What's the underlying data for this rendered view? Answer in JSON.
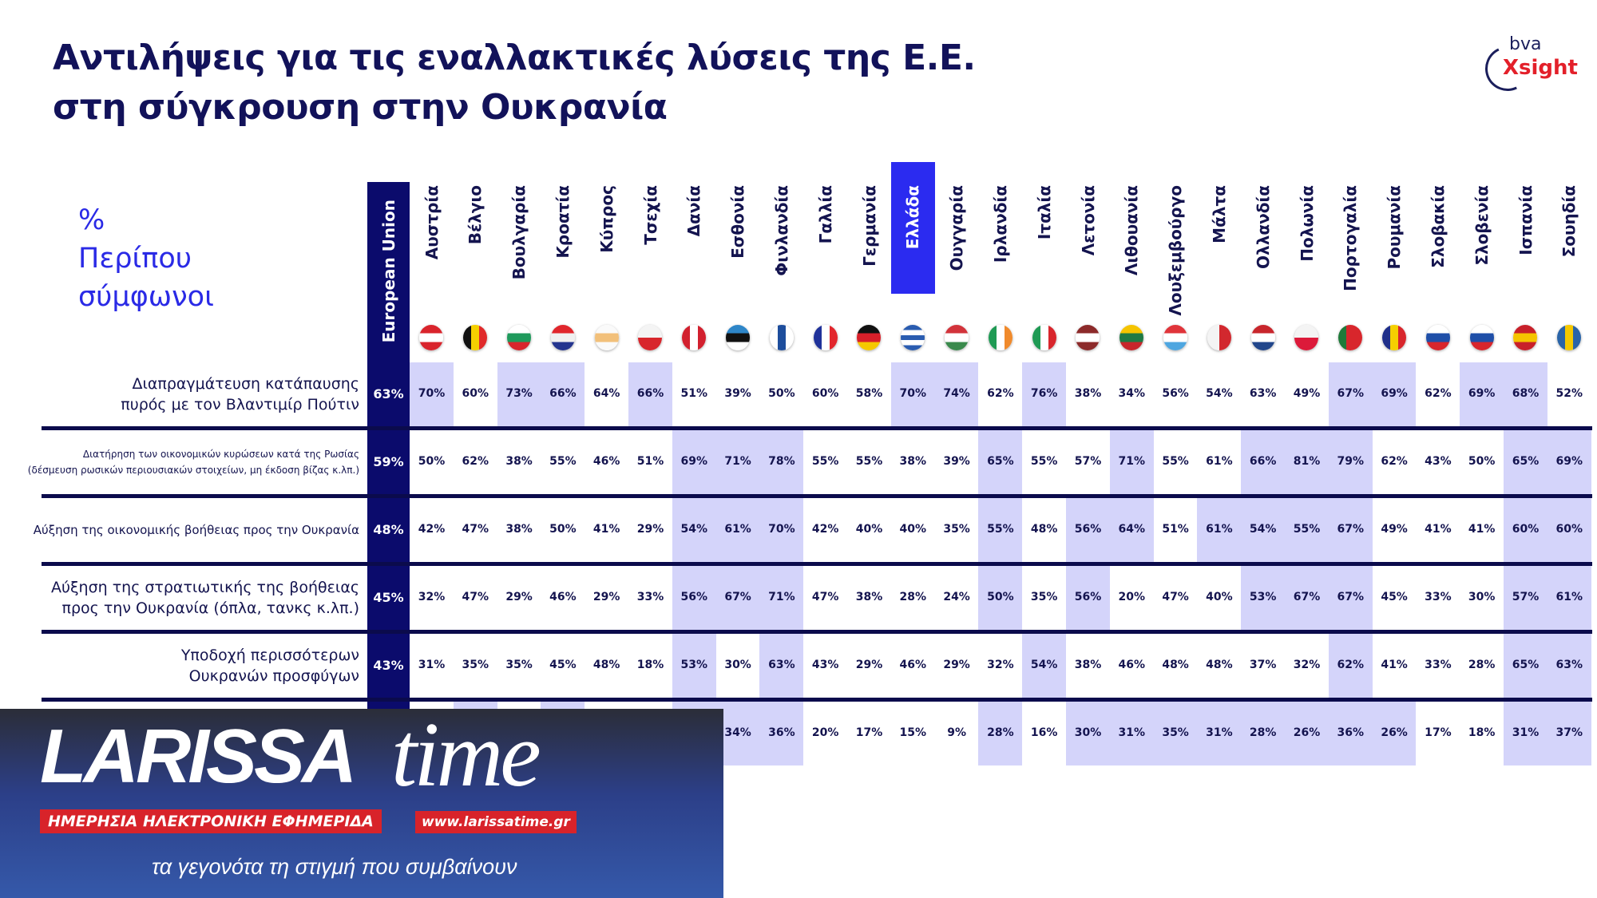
{
  "title_line1": "Αντιλήψεις για τις εναλλακτικές λύσεις της Ε.Ε.",
  "title_line2": "στη σύγκρουση στην Ουκρανία",
  "logo": {
    "top": "bva",
    "bottom": "Xsight"
  },
  "measure": {
    "line1": "%",
    "line2": "Περίπου",
    "line3": "σύμφωνοι"
  },
  "colors": {
    "eu": "#0b0b6c",
    "highlight": "#d4d4fa",
    "greece": "#2b2bf0",
    "text": "#14144f",
    "measure": "#2a2ae6"
  },
  "chart_data": {
    "type": "table",
    "eu_label": "European Union",
    "highlighted_country": "Ελλάδα",
    "countries": [
      {
        "name": "Αυστρία",
        "flag": {
          "dir": "v",
          "c": [
            "#d9242c",
            "#fff",
            "#d9242c"
          ]
        }
      },
      {
        "name": "Βέλγιο",
        "flag": {
          "dir": "h",
          "c": [
            "#111",
            "#f5d000",
            "#e02a2a"
          ]
        }
      },
      {
        "name": "Βουλγαρία",
        "flag": {
          "dir": "v",
          "c": [
            "#fff",
            "#1f9a5c",
            "#d8262c"
          ]
        }
      },
      {
        "name": "Κροατία",
        "flag": {
          "dir": "v",
          "c": [
            "#e0262c",
            "#f0f0f0",
            "#24358f"
          ]
        }
      },
      {
        "name": "Κύπρος",
        "flag": {
          "dir": "v",
          "c": [
            "#fafafa",
            "#f2c07a",
            "#fafafa"
          ]
        }
      },
      {
        "name": "Τσεχία",
        "flag": {
          "dir": "v",
          "c": [
            "#f4f4f4",
            "#d8262c"
          ]
        }
      },
      {
        "name": "Δανία",
        "flag": {
          "dir": "h",
          "c": [
            "#d2202e",
            "#fff",
            "#d2202e"
          ]
        }
      },
      {
        "name": "Εσθονία",
        "flag": {
          "dir": "v",
          "c": [
            "#2e86c8",
            "#111",
            "#fff"
          ]
        }
      },
      {
        "name": "Φινλανδία",
        "flag": {
          "dir": "h",
          "c": [
            "#fff",
            "#1d4d9c",
            "#fff"
          ]
        }
      },
      {
        "name": "Γαλλία",
        "flag": {
          "dir": "h",
          "c": [
            "#20329a",
            "#fff",
            "#e2262c"
          ]
        }
      },
      {
        "name": "Γερμανία",
        "flag": {
          "dir": "v",
          "c": [
            "#111",
            "#d8202a",
            "#f5c800"
          ]
        }
      },
      {
        "name": "Ελλάδα",
        "flag": {
          "dir": "v",
          "c": [
            "#2a5cb0",
            "#fff",
            "#2a5cb0",
            "#fff",
            "#2a5cb0"
          ]
        }
      },
      {
        "name": "Ουγγαρία",
        "flag": {
          "dir": "v",
          "c": [
            "#d2333b",
            "#fff",
            "#3a8a4c"
          ]
        }
      },
      {
        "name": "Ιρλανδία",
        "flag": {
          "dir": "h",
          "c": [
            "#1f9a54",
            "#fff",
            "#f08a2c"
          ]
        }
      },
      {
        "name": "Ιταλία",
        "flag": {
          "dir": "h",
          "c": [
            "#1f9a54",
            "#fff",
            "#d8262c"
          ]
        }
      },
      {
        "name": "Λετονία",
        "flag": {
          "dir": "v",
          "c": [
            "#8c2a2a",
            "#fff",
            "#8c2a2a"
          ]
        }
      },
      {
        "name": "Λιθουανία",
        "flag": {
          "dir": "v",
          "c": [
            "#f5c400",
            "#1f7a44",
            "#c8262c"
          ]
        }
      },
      {
        "name": "Λουξεμβούργο",
        "flag": {
          "dir": "v",
          "c": [
            "#e0343a",
            "#fff",
            "#4ea6e0"
          ]
        }
      },
      {
        "name": "Μάλτα",
        "flag": {
          "dir": "h",
          "c": [
            "#f4f4f4",
            "#d2282e"
          ]
        }
      },
      {
        "name": "Ολλανδία",
        "flag": {
          "dir": "v",
          "c": [
            "#c8262c",
            "#fff",
            "#21468b"
          ]
        }
      },
      {
        "name": "Πολωνία",
        "flag": {
          "dir": "v",
          "c": [
            "#f4f4f4",
            "#dc1a3a"
          ]
        }
      },
      {
        "name": "Πορτογαλία",
        "flag": {
          "dir": "h",
          "c": [
            "#1f7a3a",
            "#d8262c",
            "#d8262c"
          ]
        }
      },
      {
        "name": "Ρουμανία",
        "flag": {
          "dir": "h",
          "c": [
            "#1f2f8a",
            "#f5d000",
            "#d8262c"
          ]
        }
      },
      {
        "name": "Σλοβακία",
        "flag": {
          "dir": "v",
          "c": [
            "#fff",
            "#1f4fa8",
            "#d8262c"
          ]
        }
      },
      {
        "name": "Σλοβενία",
        "flag": {
          "dir": "v",
          "c": [
            "#fff",
            "#1f4fa8",
            "#d8262c"
          ]
        }
      },
      {
        "name": "Ισπανία",
        "flag": {
          "dir": "v",
          "c": [
            "#c8202a",
            "#f5c400",
            "#c8202a"
          ]
        }
      },
      {
        "name": "Σουηδία",
        "flag": {
          "dir": "h",
          "c": [
            "#2a64a8",
            "#f5c800",
            "#2a64a8"
          ]
        }
      }
    ],
    "rows": [
      {
        "label": "Διαπραγμάτευση κατάπαυσης πυρός με τον Βλαντιμίρ Πούτιν",
        "label_lines": [
          "Διαπραγμάτευση κατάπαυσης",
          "πυρός με τον Βλαντιμίρ Πούτιν"
        ],
        "eu": "63%",
        "values": [
          "70%",
          "60%",
          "73%",
          "66%",
          "64%",
          "66%",
          "51%",
          "39%",
          "50%",
          "60%",
          "58%",
          "70%",
          "74%",
          "62%",
          "76%",
          "38%",
          "34%",
          "56%",
          "54%",
          "63%",
          "49%",
          "67%",
          "69%",
          "62%",
          "69%",
          "68%",
          "52%"
        ],
        "highlighted": [
          "Αυστρία",
          "Βουλγαρία",
          "Κροατία",
          "Τσεχία",
          "Ελλάδα",
          "Ουγγαρία",
          "Ιταλία",
          "Πορτογαλία",
          "Ρουμανία",
          "Σλοβενία",
          "Ισπανία"
        ]
      },
      {
        "label": "Διατήρηση των οικονομικών κυρώσεων κατά της Ρωσίας (δέσμευση ρωσικών περιουσιακών στοιχείων, μη έκδοση βίζας κ.λπ.)",
        "label_lines": [
          "Διατήρηση των οικονομικών κυρώσεων κατά της Ρωσίας",
          "(δέσμευση ρωσικών περιουσιακών στοιχείων, μη έκδοση βίζας κ.λπ.)"
        ],
        "eu": "59%",
        "values": [
          "50%",
          "62%",
          "38%",
          "55%",
          "46%",
          "51%",
          "69%",
          "71%",
          "78%",
          "55%",
          "55%",
          "38%",
          "39%",
          "65%",
          "55%",
          "57%",
          "71%",
          "55%",
          "61%",
          "66%",
          "81%",
          "79%",
          "62%",
          "43%",
          "50%",
          "65%",
          "69%"
        ],
        "highlighted": [
          "Δανία",
          "Εσθονία",
          "Φινλανδία",
          "Ιρλανδία",
          "Λιθουανία",
          "Ολλανδία",
          "Πολωνία",
          "Πορτογαλία",
          "Ισπανία",
          "Σουηδία"
        ]
      },
      {
        "label": "Αύξηση της οικονομικής βοήθειας προς την Ουκρανία",
        "label_lines": [
          "Αύξηση της οικονομικής βοήθειας προς την Ουκρανία"
        ],
        "eu": "48%",
        "values": [
          "42%",
          "47%",
          "38%",
          "50%",
          "41%",
          "29%",
          "54%",
          "61%",
          "70%",
          "42%",
          "40%",
          "40%",
          "35%",
          "55%",
          "48%",
          "56%",
          "64%",
          "51%",
          "61%",
          "54%",
          "55%",
          "67%",
          "49%",
          "41%",
          "41%",
          "60%",
          "60%"
        ],
        "highlighted": [
          "Δανία",
          "Εσθονία",
          "Φινλανδία",
          "Ιρλανδία",
          "Λετονία",
          "Λιθουανία",
          "Μάλτα",
          "Ολλανδία",
          "Πολωνία",
          "Πορτογαλία",
          "Ισπανία",
          "Σουηδία"
        ]
      },
      {
        "label": "Αύξηση της στρατιωτικής της βοήθειας προς την Ουκρανία (όπλα, τανκς κ.λπ.)",
        "label_lines": [
          "Αύξηση της στρατιωτικής της βοήθειας",
          "προς την Ουκρανία (όπλα, τανκς κ.λπ.)"
        ],
        "eu": "45%",
        "values": [
          "32%",
          "47%",
          "29%",
          "46%",
          "29%",
          "33%",
          "56%",
          "67%",
          "71%",
          "47%",
          "38%",
          "28%",
          "24%",
          "50%",
          "35%",
          "56%",
          "20%",
          "47%",
          "40%",
          "53%",
          "67%",
          "67%",
          "45%",
          "33%",
          "30%",
          "57%",
          "61%"
        ],
        "highlighted": [
          "Δανία",
          "Εσθονία",
          "Φινλανδία",
          "Ιρλανδία",
          "Λετονία",
          "Ολλανδία",
          "Πολωνία",
          "Πορτογαλία",
          "Ισπανία",
          "Σουηδία"
        ]
      },
      {
        "label": "Υποδοχή περισσότερων Ουκρανών προσφύγων",
        "label_lines": [
          "Υποδοχή περισσότερων",
          "Ουκρανών προσφύγων"
        ],
        "eu": "43%",
        "values": [
          "31%",
          "35%",
          "35%",
          "45%",
          "48%",
          "18%",
          "53%",
          "30%",
          "63%",
          "43%",
          "29%",
          "46%",
          "29%",
          "32%",
          "54%",
          "38%",
          "46%",
          "48%",
          "48%",
          "37%",
          "32%",
          "62%",
          "41%",
          "33%",
          "28%",
          "65%",
          "63%"
        ],
        "highlighted": [
          "Δανία",
          "Φινλανδία",
          "Ιταλία",
          "Πορτογαλία",
          "Ισπανία",
          "Σουηδία"
        ]
      },
      {
        "label": "",
        "label_lines": [],
        "eu": null,
        "values": [
          null,
          null,
          null,
          null,
          null,
          null,
          null,
          "34%",
          "36%",
          "20%",
          "17%",
          "15%",
          "9%",
          "28%",
          "16%",
          "30%",
          "31%",
          "35%",
          "31%",
          "28%",
          "26%",
          "36%",
          "26%",
          "17%",
          "18%",
          "31%",
          "37%"
        ],
        "highlighted": [
          "Βέλγιο",
          "Κροατία",
          "Δανία",
          "Εσθονία",
          "Φινλανδία",
          "Ιρλανδία",
          "Λετονία",
          "Λιθουανία",
          "Λουξεμβούργο",
          "Μάλτα",
          "Ολλανδία",
          "Πολωνία",
          "Πορτογαλία",
          "Ρουμανία",
          "Ισπανία",
          "Σουηδία"
        ]
      }
    ]
  },
  "overlay": {
    "brand_main": "LARISSA",
    "brand_script": "time",
    "url": "www.larissatime.gr",
    "subtitle": "ΗΜΕΡΗΣΙΑ ΗΛΕΚΤΡΟΝΙΚΗ ΕΦΗΜΕΡΙΔΑ",
    "slogan": "τα γεγονότα τη στιγμή που συμβαίνουν"
  }
}
